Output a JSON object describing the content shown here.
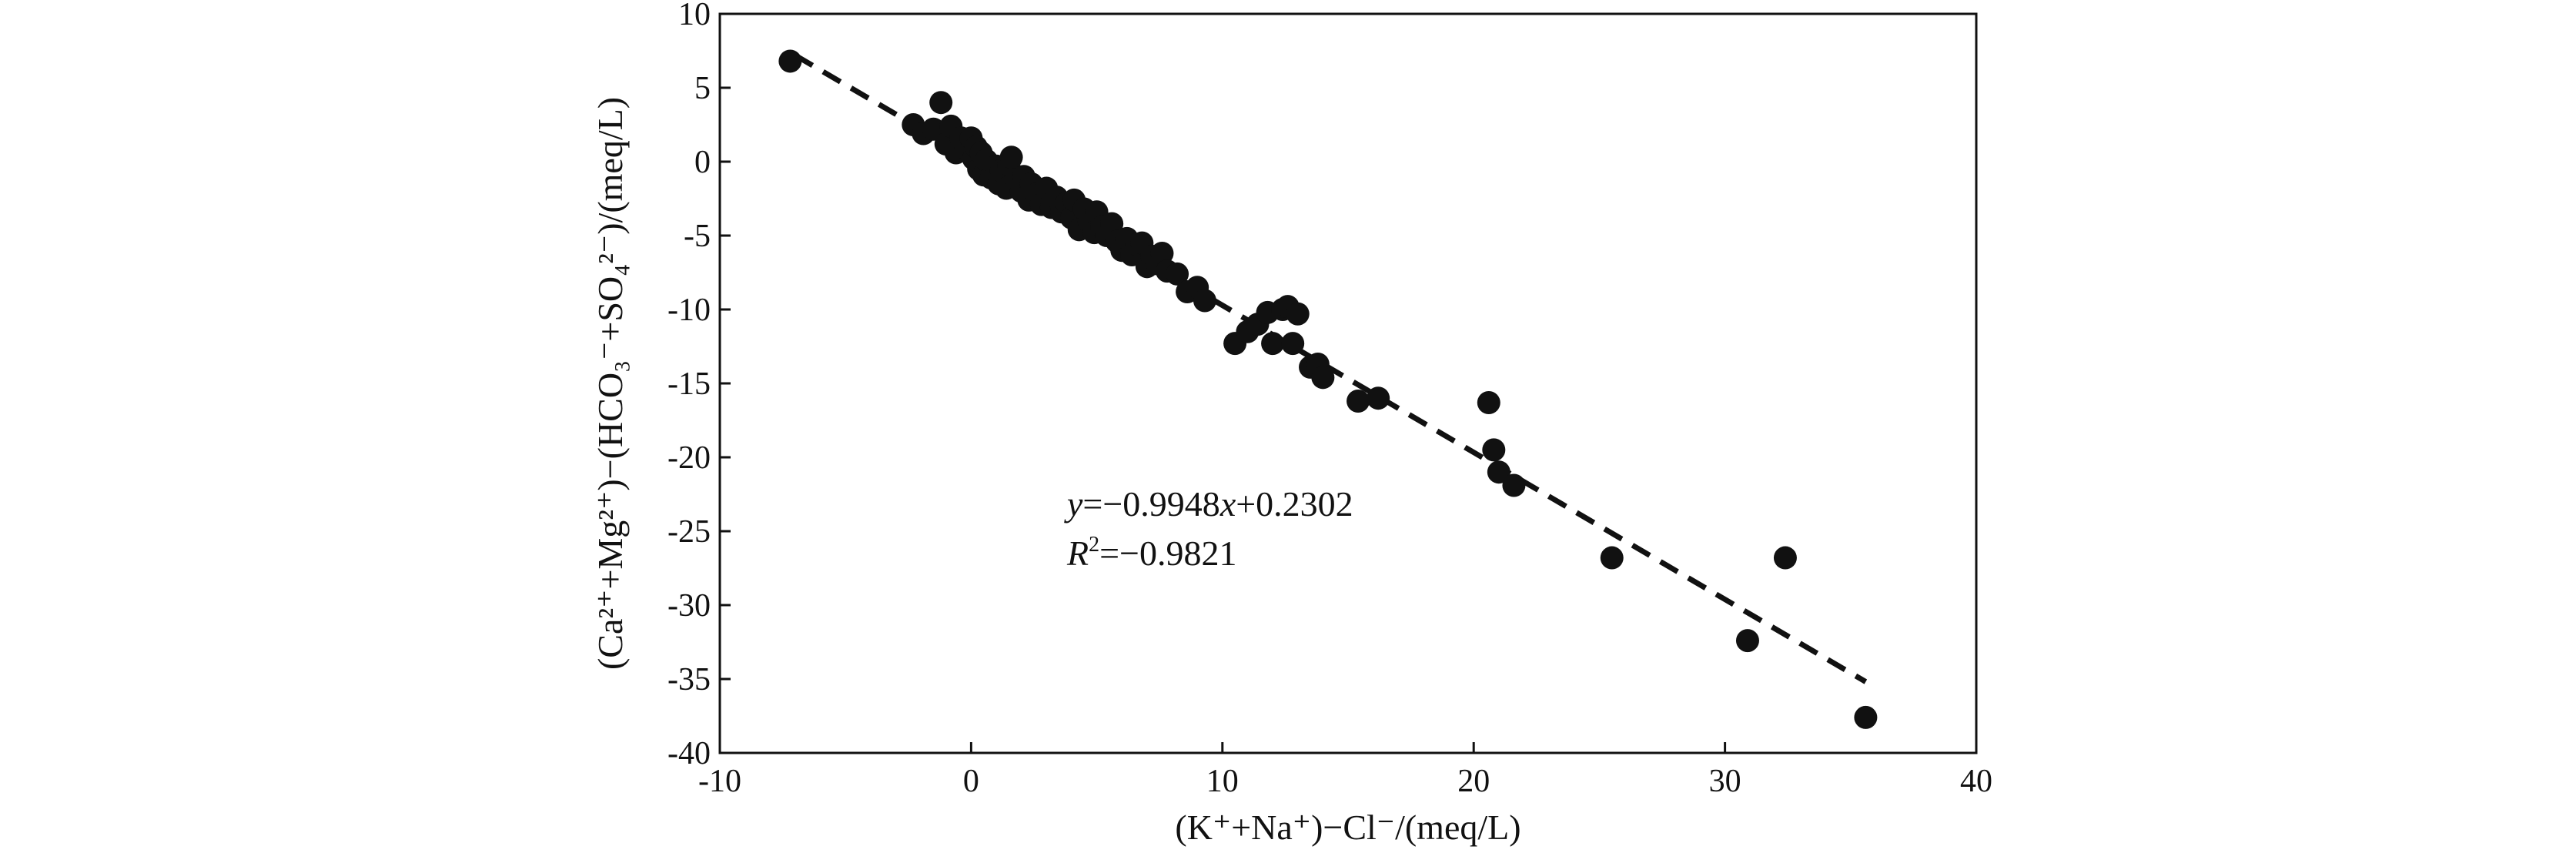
{
  "chart_data": {
    "type": "scatter",
    "title": "",
    "xlabel": "(K⁺+Na⁺)−Cl⁻/(meq/L)",
    "ylabel": "(Ca²⁺+Mg²⁺)−(HCO₃⁻+SO₄²⁻)/(meq/L)",
    "xlim": [
      -10,
      40
    ],
    "ylim": [
      -40,
      10
    ],
    "xticks": [
      -10,
      0,
      10,
      20,
      30,
      40
    ],
    "yticks": [
      -40,
      -35,
      -30,
      -25,
      -20,
      -15,
      -10,
      -5,
      0,
      5,
      10
    ],
    "xtick_labels": [
      "-10",
      "0",
      "10",
      "20",
      "30",
      "40"
    ],
    "ytick_labels": [
      "-40",
      "-35",
      "-30",
      "-25",
      "-20",
      "-15",
      "-10",
      "-5",
      "0",
      "5",
      "10"
    ],
    "grid": false,
    "legend": "none",
    "marker_color": "#111111",
    "series": [
      {
        "points": [
          [
            -7.2,
            6.8
          ],
          [
            -2.3,
            2.5
          ],
          [
            -1.9,
            1.9
          ],
          [
            -1.5,
            2.2
          ],
          [
            -1.2,
            4.0
          ],
          [
            -1.0,
            1.2
          ],
          [
            -0.8,
            2.4
          ],
          [
            -0.6,
            0.6
          ],
          [
            -0.4,
            1.6
          ],
          [
            -0.2,
            0.9
          ],
          [
            0.0,
            1.6
          ],
          [
            0.1,
            0.2
          ],
          [
            0.2,
            1.0
          ],
          [
            0.3,
            -0.5
          ],
          [
            0.4,
            0.6
          ],
          [
            0.5,
            -0.9
          ],
          [
            0.6,
            0.1
          ],
          [
            0.8,
            -1.1
          ],
          [
            1.0,
            -0.3
          ],
          [
            1.1,
            -1.5
          ],
          [
            1.2,
            -0.6
          ],
          [
            1.4,
            -1.8
          ],
          [
            1.5,
            -0.2
          ],
          [
            1.6,
            0.3
          ],
          [
            1.8,
            -1.2
          ],
          [
            2.0,
            -2.0
          ],
          [
            2.1,
            -1.0
          ],
          [
            2.3,
            -2.6
          ],
          [
            2.4,
            -1.5
          ],
          [
            2.6,
            -2.2
          ],
          [
            2.8,
            -2.9
          ],
          [
            3.0,
            -1.8
          ],
          [
            3.2,
            -3.1
          ],
          [
            3.4,
            -2.4
          ],
          [
            3.6,
            -3.4
          ],
          [
            3.8,
            -2.8
          ],
          [
            4.0,
            -3.8
          ],
          [
            4.1,
            -2.6
          ],
          [
            4.3,
            -4.6
          ],
          [
            4.5,
            -3.2
          ],
          [
            4.7,
            -4.1
          ],
          [
            4.9,
            -4.8
          ],
          [
            5.0,
            -3.4
          ],
          [
            5.2,
            -4.4
          ],
          [
            5.4,
            -5.0
          ],
          [
            5.6,
            -4.2
          ],
          [
            5.8,
            -5.4
          ],
          [
            6.0,
            -6.0
          ],
          [
            6.2,
            -5.2
          ],
          [
            6.4,
            -6.3
          ],
          [
            6.6,
            -5.6
          ],
          [
            6.8,
            -5.5
          ],
          [
            7.0,
            -7.1
          ],
          [
            7.2,
            -6.4
          ],
          [
            7.4,
            -6.9
          ],
          [
            7.6,
            -6.2
          ],
          [
            7.8,
            -7.4
          ],
          [
            8.2,
            -7.6
          ],
          [
            8.6,
            -8.8
          ],
          [
            9.0,
            -8.5
          ],
          [
            9.3,
            -9.4
          ],
          [
            10.5,
            -12.3
          ],
          [
            11.0,
            -11.5
          ],
          [
            11.4,
            -11.0
          ],
          [
            11.8,
            -10.2
          ],
          [
            12.0,
            -12.3
          ],
          [
            12.4,
            -10.0
          ],
          [
            12.6,
            -9.8
          ],
          [
            12.8,
            -12.3
          ],
          [
            13.0,
            -10.3
          ],
          [
            13.5,
            -13.9
          ],
          [
            13.8,
            -13.7
          ],
          [
            14.0,
            -14.6
          ],
          [
            15.4,
            -16.2
          ],
          [
            16.2,
            -16.0
          ],
          [
            20.6,
            -16.3
          ],
          [
            20.8,
            -19.5
          ],
          [
            21.0,
            -21.0
          ],
          [
            21.6,
            -21.9
          ],
          [
            25.5,
            -26.8
          ],
          [
            30.9,
            -32.4
          ],
          [
            32.4,
            -26.8
          ],
          [
            35.6,
            -37.6
          ]
        ]
      }
    ],
    "trendline": {
      "slope": -0.9948,
      "intercept": 0.2302,
      "x_range": [
        -7.0,
        35.6
      ],
      "style": "dashed"
    },
    "annotations": {
      "equation_y": "y",
      "equation_rest": "=−0.9948",
      "equation_x": "x",
      "equation_tail": "+0.2302",
      "r2_r": "R",
      "r2_sup": "2",
      "r2_rest": "=−0.9821"
    }
  }
}
